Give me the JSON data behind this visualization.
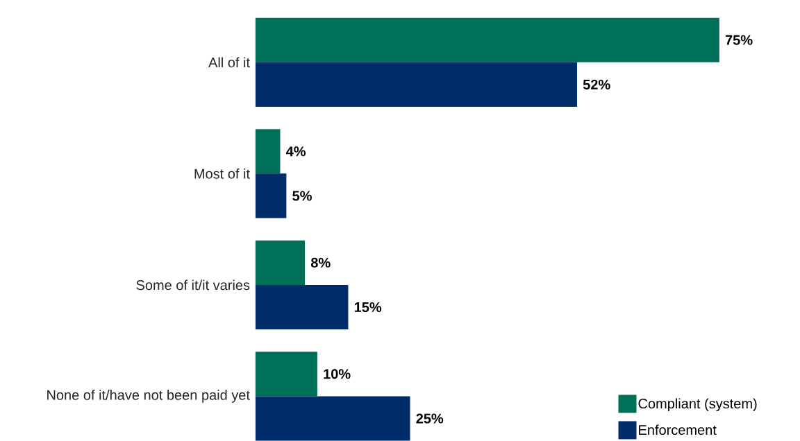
{
  "chart_data": {
    "type": "bar",
    "orientation": "horizontal",
    "categories": [
      "All of it",
      "Most of it",
      "Some of it/it varies",
      "None of it/have not been paid yet"
    ],
    "series": [
      {
        "name": "Compliant (system)",
        "color": "#006f5a",
        "values": [
          75,
          4,
          8,
          10
        ],
        "value_labels": [
          "75%",
          "4%",
          "8%",
          "10%"
        ]
      },
      {
        "name": "Enforcement",
        "color": "#002d6a",
        "values": [
          52,
          5,
          15,
          25
        ],
        "value_labels": [
          "52%",
          "5%",
          "15%",
          "25%"
        ]
      }
    ],
    "legend": "bottom right"
  }
}
